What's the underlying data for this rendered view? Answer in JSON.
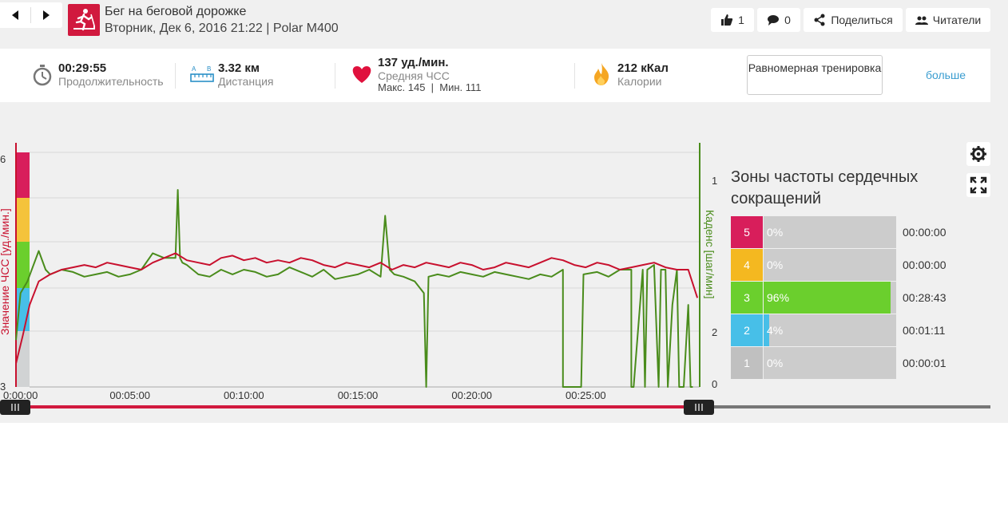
{
  "header": {
    "title": "Бег на беговой дорожке",
    "subtitle": "Вторник, Дек 6, 2016 21:22 | Polar M400",
    "like_count": "1",
    "comment_count": "0",
    "share_label": "Поделиться",
    "followers_label": "Читатели"
  },
  "stats": {
    "duration": {
      "value": "00:29:55",
      "label": "Продолжительность"
    },
    "distance": {
      "value": "3.32 км",
      "label": "Дистанция"
    },
    "heart_rate": {
      "value": "137 уд./мин.",
      "label": "Средняя ЧСС",
      "detail": "Макс. 145  |  Мин. 111"
    },
    "calories": {
      "value": "212 кКал",
      "label": "Калории"
    },
    "benefit_button": "Равномерная тренировка",
    "more_link": "больше"
  },
  "chart": {
    "left_axis_label": "Значение ЧСС [уд./мин.]",
    "right_axis_label": "Каденс [шаг/мин]",
    "left_tick_top": "6",
    "left_tick_bottom": "3",
    "right_tick_top": "1",
    "right_tick_mid": "2",
    "right_tick_bottom": "0",
    "x_ticks": [
      "0:00:00",
      "00:05:00",
      "00:10:00",
      "00:15:00",
      "00:20:00",
      "00:25:00"
    ]
  },
  "chart_data": {
    "type": "line",
    "x_unit": "minutes",
    "x_range": [
      0,
      30
    ],
    "series": [
      {
        "name": "Значение ЧСС [уд./мин.]",
        "color": "#c8102e",
        "x": [
          0,
          0.3,
          0.6,
          1,
          1.5,
          2,
          2.5,
          3,
          3.5,
          4,
          4.5,
          5,
          5.5,
          6,
          6.5,
          7,
          7.5,
          8,
          8.5,
          9,
          9.5,
          10,
          10.5,
          11,
          11.5,
          12,
          12.5,
          13,
          13.5,
          14,
          14.5,
          15,
          15.5,
          16,
          16.5,
          17,
          17.5,
          18,
          18.5,
          19,
          19.5,
          20,
          20.5,
          21,
          21.5,
          22,
          22.5,
          23,
          23.5,
          24,
          24.5,
          25,
          25.5,
          26,
          26.5,
          27,
          27.5,
          28,
          28.5,
          29,
          29.5,
          29.9
        ],
        "y": [
          0.1,
          0.22,
          0.35,
          0.45,
          0.48,
          0.5,
          0.51,
          0.52,
          0.51,
          0.53,
          0.52,
          0.51,
          0.5,
          0.53,
          0.55,
          0.57,
          0.54,
          0.53,
          0.52,
          0.55,
          0.56,
          0.54,
          0.55,
          0.53,
          0.54,
          0.53,
          0.55,
          0.54,
          0.52,
          0.51,
          0.53,
          0.52,
          0.51,
          0.53,
          0.5,
          0.52,
          0.51,
          0.53,
          0.52,
          0.51,
          0.53,
          0.52,
          0.5,
          0.51,
          0.53,
          0.52,
          0.51,
          0.53,
          0.55,
          0.54,
          0.52,
          0.51,
          0.53,
          0.52,
          0.5,
          0.51,
          0.52,
          0.53,
          0.51,
          0.5,
          0.5,
          0.38
        ]
      },
      {
        "name": "Каденс [шаг/мин]",
        "color": "#4a8c1c",
        "x": [
          0,
          0.2,
          0.5,
          1,
          1.3,
          1.5,
          2,
          2.5,
          3,
          3.5,
          4,
          4.5,
          5,
          5.5,
          6,
          6.5,
          7,
          7.1,
          7.2,
          7.3,
          7.5,
          8,
          8.5,
          9,
          9.5,
          10,
          10.5,
          11,
          11.5,
          12,
          12.5,
          13,
          13.5,
          14,
          14.5,
          15,
          15.5,
          16,
          16.2,
          16.4,
          16.6,
          17,
          17.5,
          17.9,
          18.0,
          18.1,
          18.5,
          19,
          19.5,
          20,
          20.5,
          21,
          21.5,
          22,
          22.5,
          23,
          23.5,
          24,
          24.0,
          24.1,
          24.8,
          24.9,
          25.5,
          26,
          26.5,
          27,
          27.0,
          27.1,
          27.5,
          27.6,
          27.7,
          28,
          28.2,
          28.3,
          28.5,
          28.6,
          28.8,
          29,
          29.1,
          29.3,
          29.5,
          29.6,
          29.7
        ],
        "y": [
          0.2,
          0.4,
          0.45,
          0.58,
          0.5,
          0.48,
          0.5,
          0.49,
          0.47,
          0.48,
          0.49,
          0.47,
          0.48,
          0.5,
          0.57,
          0.55,
          0.55,
          0.84,
          0.55,
          0.53,
          0.52,
          0.48,
          0.47,
          0.5,
          0.48,
          0.5,
          0.49,
          0.47,
          0.48,
          0.51,
          0.49,
          0.47,
          0.5,
          0.46,
          0.47,
          0.48,
          0.5,
          0.47,
          0.73,
          0.5,
          0.48,
          0.47,
          0.45,
          0.4,
          0.0,
          0.47,
          0.48,
          0.47,
          0.49,
          0.48,
          0.47,
          0.49,
          0.48,
          0.47,
          0.46,
          0.48,
          0.47,
          0.5,
          0.0,
          0.0,
          0.0,
          0.48,
          0.49,
          0.47,
          0.5,
          0.5,
          0.0,
          0.0,
          0.5,
          0.0,
          0.5,
          0.52,
          0.0,
          0.5,
          0.5,
          0.0,
          0.35,
          0.5,
          0.0,
          0.0,
          0.35,
          0.0,
          0.0
        ]
      }
    ],
    "hr_zone_band_colors": [
      "#d1d3d4",
      "#47bfe8",
      "#6bcf2d",
      "#f4c33b",
      "#d81e5b"
    ]
  },
  "zones": {
    "title": "Зоны частоты сердечных сокращений",
    "rows": [
      {
        "zone": "5",
        "pct": "0%",
        "fraction": 0.0,
        "time": "00:00:00",
        "color": "#d81e5b"
      },
      {
        "zone": "4",
        "pct": "0%",
        "fraction": 0.0,
        "time": "00:00:00",
        "color": "#f4b820"
      },
      {
        "zone": "3",
        "pct": "96%",
        "fraction": 0.96,
        "time": "00:28:43",
        "color": "#6bcf2d"
      },
      {
        "zone": "2",
        "pct": "4%",
        "fraction": 0.04,
        "time": "00:01:11",
        "color": "#47bfe8"
      },
      {
        "zone": "1",
        "pct": "0%",
        "fraction": 0.0,
        "time": "00:00:01",
        "color": "#c0c0c0"
      }
    ]
  },
  "slider": {
    "fill_color": "#d1193e"
  }
}
